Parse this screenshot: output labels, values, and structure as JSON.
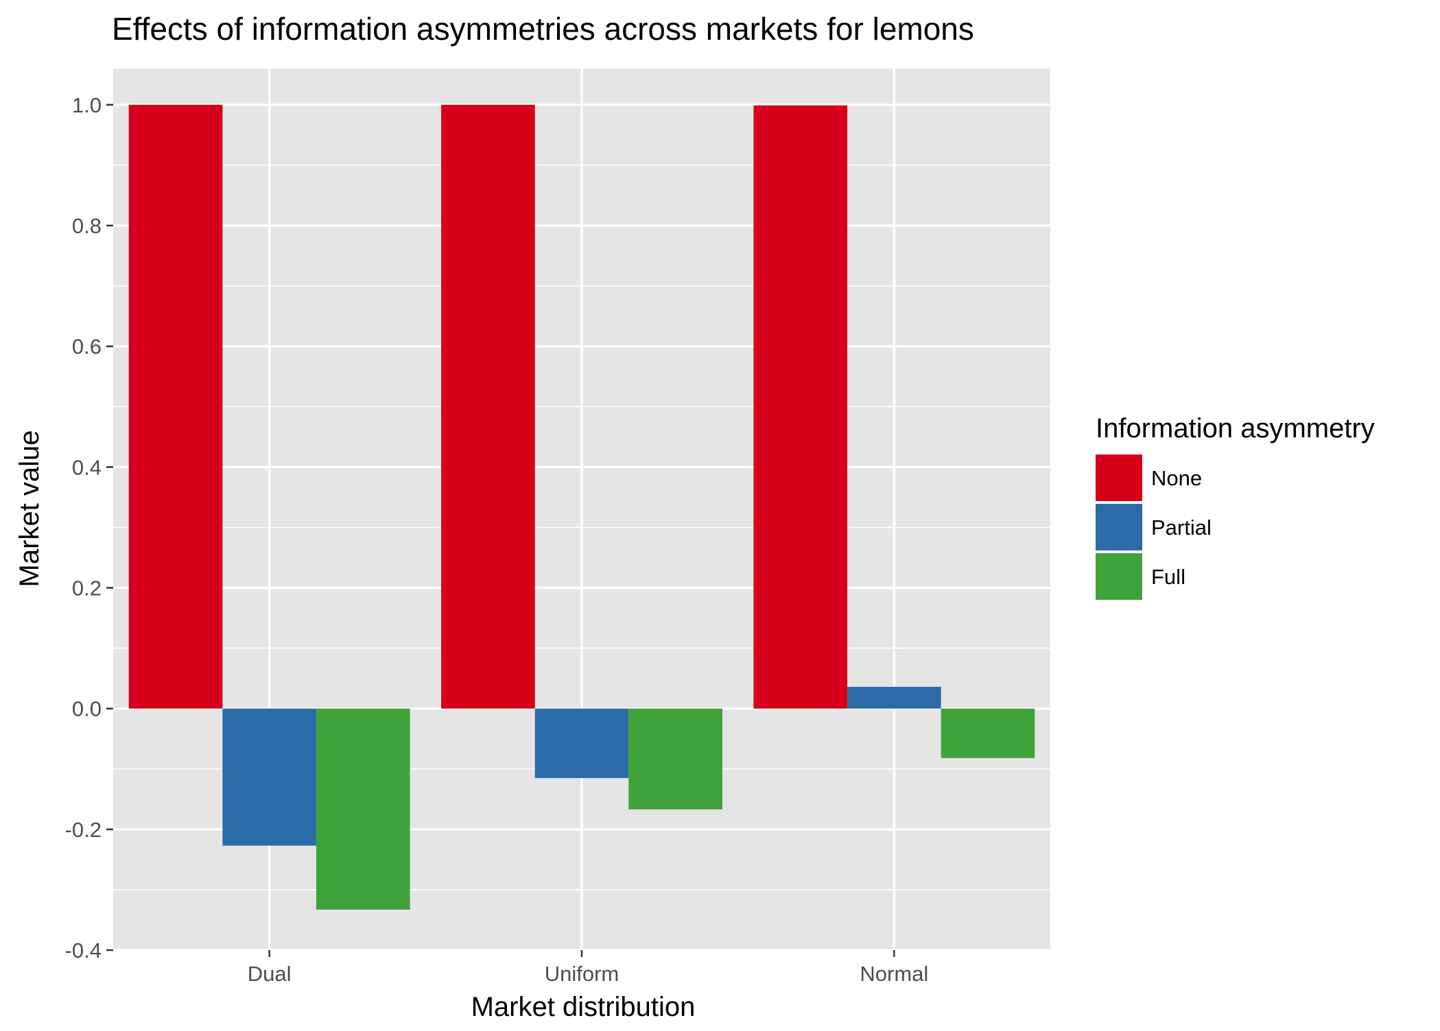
{
  "chart_data": {
    "type": "bar",
    "title": "Effects of information asymmetries across markets for lemons",
    "xlabel": "Market distribution",
    "ylabel": "Market value",
    "categories": [
      "Dual",
      "Uniform",
      "Normal"
    ],
    "series": [
      {
        "name": "None",
        "color": "#D7001B",
        "values": [
          1.0,
          1.0,
          0.999
        ]
      },
      {
        "name": "Partial",
        "color": "#2D6AA8",
        "values": [
          -0.227,
          -0.115,
          0.036
        ]
      },
      {
        "name": "Full",
        "color": "#40A23A",
        "values": [
          -0.333,
          -0.167,
          -0.082
        ]
      }
    ],
    "ylim": [
      -0.4,
      1.06
    ],
    "yticks": [
      -0.4,
      -0.2,
      0.0,
      0.2,
      0.4,
      0.6,
      0.8,
      1.0
    ],
    "ytick_labels": [
      "-0.4",
      "-0.2",
      "0.0",
      "0.2",
      "0.4",
      "0.6",
      "0.8",
      "1.0"
    ],
    "legend": {
      "title": "Information asymmetry",
      "position": "right"
    },
    "grid": true,
    "panel_background": "#E5E5E5",
    "grid_color": "#FFFFFF"
  }
}
